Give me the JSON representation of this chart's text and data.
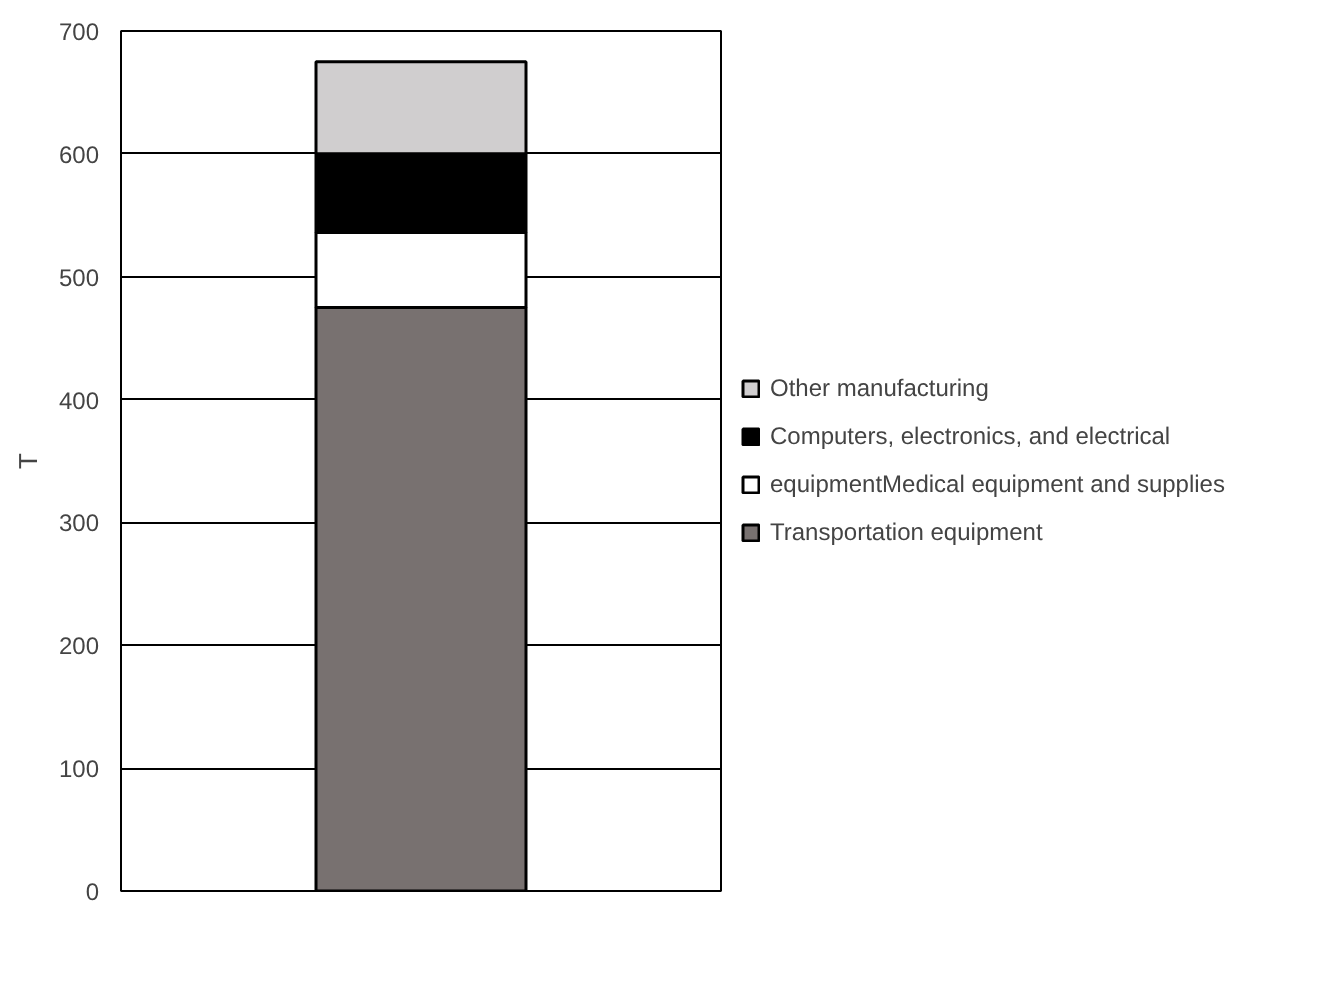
{
  "chart_data": {
    "type": "bar",
    "stacked": true,
    "ylabel": "T",
    "categories": [
      null
    ],
    "series": [
      {
        "name": "Transportation equipment",
        "color": "#787170",
        "values": [
          475
        ]
      },
      {
        "name": "equipmentMedical equipment and supplies",
        "color": "#ffffff",
        "values": [
          61
        ]
      },
      {
        "name": "Computers, electronics, and electrical",
        "color": "#000000",
        "values": [
          64
        ]
      },
      {
        "name": "Other manufacturing",
        "color": "#d0cecf",
        "values": [
          75
        ]
      }
    ],
    "ylim": [
      0,
      700
    ],
    "yticks": [
      0,
      100,
      200,
      300,
      400,
      500,
      600,
      700
    ],
    "grid": "y",
    "legend": "right"
  }
}
